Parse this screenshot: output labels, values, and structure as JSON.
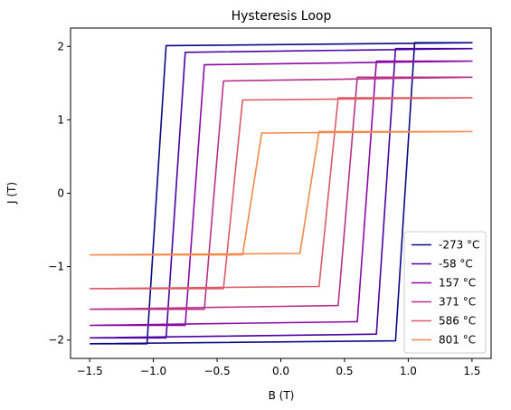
{
  "chart_data": {
    "type": "line",
    "title": "Hysteresis Loop",
    "xlabel": "B (T)",
    "ylabel": "J (T)",
    "xlim": [
      -1.65,
      1.65
    ],
    "ylim": [
      -2.25,
      2.25
    ],
    "xticks": [
      -1.5,
      -1.0,
      -0.5,
      0.0,
      0.5,
      1.0,
      1.5
    ],
    "xtick_labels": [
      "−1.5",
      "−1.0",
      "−0.5",
      "0.0",
      "0.5",
      "1.0",
      "1.5"
    ],
    "yticks": [
      -2,
      -1,
      0,
      1,
      2
    ],
    "ytick_labels": [
      "−2",
      "−1",
      "0",
      "1",
      "2"
    ],
    "grid": false,
    "legend_position": "lower-right",
    "series": [
      {
        "name": "-273 °C",
        "color": "#0d0887",
        "x": [
          -1.5,
          0.9,
          1.05,
          1.5,
          1.5,
          -0.9,
          -1.05,
          -1.5
        ],
        "y": [
          -2.05,
          -2.01,
          2.05,
          2.05,
          2.05,
          2.01,
          -2.05,
          -2.05
        ]
      },
      {
        "name": "-58 °C",
        "color": "#4b03a1",
        "x": [
          -1.5,
          0.75,
          0.9,
          1.5,
          1.5,
          -0.75,
          -0.9,
          -1.5
        ],
        "y": [
          -1.97,
          -1.92,
          1.97,
          1.97,
          1.97,
          1.92,
          -1.97,
          -1.97
        ]
      },
      {
        "name": "157 °C",
        "color": "#8b0aa5",
        "x": [
          -1.5,
          0.6,
          0.75,
          1.5,
          1.5,
          -0.6,
          -0.75,
          -1.5
        ],
        "y": [
          -1.8,
          -1.75,
          1.8,
          1.8,
          1.8,
          1.75,
          -1.8,
          -1.8
        ]
      },
      {
        "name": "371 °C",
        "color": "#b83289",
        "x": [
          -1.5,
          0.45,
          0.6,
          1.5,
          1.5,
          -0.45,
          -0.6,
          -1.5
        ],
        "y": [
          -1.58,
          -1.53,
          1.58,
          1.58,
          1.58,
          1.53,
          -1.58,
          -1.58
        ]
      },
      {
        "name": "586 °C",
        "color": "#db5c68",
        "x": [
          -1.5,
          0.3,
          0.45,
          1.5,
          1.5,
          -0.3,
          -0.45,
          -1.5
        ],
        "y": [
          -1.3,
          -1.27,
          1.3,
          1.3,
          1.3,
          1.27,
          -1.3,
          -1.3
        ]
      },
      {
        "name": "801 °C",
        "color": "#f48849",
        "x": [
          -1.5,
          0.15,
          0.3,
          1.5,
          1.5,
          -0.15,
          -0.3,
          -1.5
        ],
        "y": [
          -0.84,
          -0.82,
          0.84,
          0.84,
          0.84,
          0.82,
          -0.84,
          -0.84
        ]
      }
    ]
  }
}
